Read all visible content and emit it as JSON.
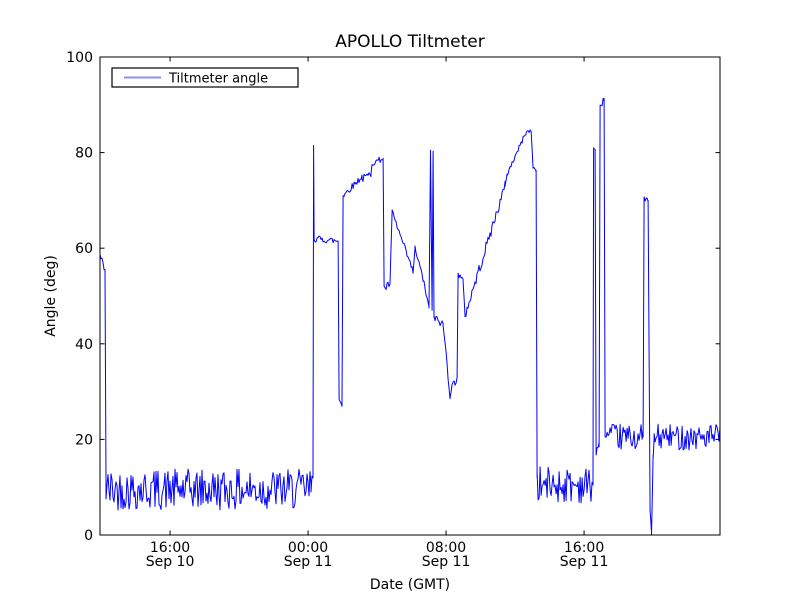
{
  "chart_data": {
    "type": "line",
    "title": "APOLLO Tiltmeter",
    "xlabel": "Date (GMT)",
    "ylabel": "Angle (deg)",
    "grid": false,
    "ylim": [
      0,
      100
    ],
    "y_ticks": [
      0,
      20,
      40,
      60,
      80,
      100
    ],
    "xlim_hours_from_sep10_0000_gmt": [
      11.94,
      47.88
    ],
    "x_ticks": [
      {
        "hour": 16,
        "time": "16:00",
        "date": "Sep 10"
      },
      {
        "hour": 24,
        "time": "00:00",
        "date": "Sep 11"
      },
      {
        "hour": 32,
        "time": "08:00",
        "date": "Sep 11"
      },
      {
        "hour": 40,
        "time": "16:00",
        "date": "Sep 11"
      }
    ],
    "legend": {
      "position": "upper left",
      "entries": [
        {
          "label": "Tiltmeter angle",
          "color": "#0000ff"
        }
      ]
    },
    "series": [
      {
        "name": "Tiltmeter angle",
        "color": "#0000ff",
        "segment_encoding": "[startHour, endHour, startAngleDeg, endAngleDeg, noiseAmplitudeDeg] — hours counted from Sep 10 00:00 GMT; noisy segments are dense random zigzag bands",
        "segments": [
          [
            11.94,
            12.23,
            58.5,
            55.5,
            0.9
          ],
          [
            12.23,
            12.29,
            55.5,
            11.0,
            0
          ],
          [
            12.29,
            24.17,
            9.5,
            9.5,
            4.3
          ],
          [
            24.17,
            24.29,
            9.5,
            13.0,
            1.5
          ],
          [
            24.29,
            24.32,
            13.0,
            81.5,
            0
          ],
          [
            24.32,
            24.35,
            81.5,
            62.0,
            0
          ],
          [
            24.35,
            25.74,
            62.0,
            61.5,
            0.7
          ],
          [
            25.74,
            25.8,
            61.5,
            28.5,
            0
          ],
          [
            25.8,
            25.97,
            28.5,
            27.5,
            0.8
          ],
          [
            25.97,
            26.03,
            27.5,
            71.0,
            0
          ],
          [
            26.03,
            27.13,
            71.0,
            75.0,
            0.7
          ],
          [
            27.13,
            27.65,
            74.5,
            75.5,
            0.8
          ],
          [
            27.65,
            27.71,
            75.5,
            77.5,
            0
          ],
          [
            27.71,
            28.35,
            77.8,
            78.8,
            0.6
          ],
          [
            28.35,
            28.41,
            78.8,
            52.0,
            0
          ],
          [
            28.41,
            28.75,
            51.5,
            52.5,
            0.8
          ],
          [
            28.75,
            28.87,
            52.5,
            67.5,
            0
          ],
          [
            28.87,
            30.09,
            67.5,
            55.0,
            0.7
          ],
          [
            30.09,
            30.2,
            55.0,
            60.0,
            0
          ],
          [
            30.2,
            30.67,
            60.0,
            53.5,
            0.6
          ],
          [
            30.67,
            31.01,
            53.5,
            47.5,
            0.6
          ],
          [
            31.01,
            31.1,
            47.5,
            80.5,
            0
          ],
          [
            31.1,
            31.19,
            80.5,
            47.0,
            0
          ],
          [
            31.19,
            31.25,
            47.0,
            80.3,
            0
          ],
          [
            31.25,
            31.3,
            80.3,
            45.5,
            0
          ],
          [
            31.3,
            31.83,
            45.5,
            44.0,
            0.8
          ],
          [
            31.83,
            32.23,
            44.0,
            29.5,
            1.2
          ],
          [
            32.23,
            32.64,
            29.5,
            33.5,
            1.2
          ],
          [
            32.64,
            32.7,
            33.5,
            54.5,
            0
          ],
          [
            32.7,
            32.99,
            54.5,
            53.0,
            0.7
          ],
          [
            32.99,
            33.1,
            53.0,
            46.0,
            0
          ],
          [
            33.1,
            35.42,
            46.0,
            73.0,
            1.1
          ],
          [
            35.42,
            35.54,
            73.0,
            75.5,
            0
          ],
          [
            35.54,
            36.64,
            75.5,
            84.3,
            0.5
          ],
          [
            36.64,
            36.93,
            84.3,
            84.5,
            0.4
          ],
          [
            36.93,
            37.04,
            84.5,
            77.0,
            0
          ],
          [
            37.04,
            37.22,
            77.0,
            76.3,
            0.4
          ],
          [
            37.22,
            37.28,
            76.3,
            12.0,
            0
          ],
          [
            37.28,
            40.52,
            10.5,
            10.5,
            3.8
          ],
          [
            40.52,
            40.55,
            10.5,
            81.0,
            0
          ],
          [
            40.55,
            40.64,
            81.0,
            80.5,
            0.3
          ],
          [
            40.64,
            40.7,
            80.5,
            17.5,
            0
          ],
          [
            40.7,
            40.87,
            17.5,
            18.5,
            1.0
          ],
          [
            40.87,
            40.93,
            18.5,
            89.5,
            0
          ],
          [
            40.93,
            41.16,
            89.5,
            91.3,
            0.6
          ],
          [
            41.16,
            41.22,
            91.3,
            21.0,
            0
          ],
          [
            41.22,
            43.42,
            20.5,
            20.5,
            2.7
          ],
          [
            43.42,
            43.48,
            20.5,
            70.5,
            0
          ],
          [
            43.48,
            43.71,
            70.5,
            70.0,
            0.5
          ],
          [
            43.71,
            43.83,
            70.0,
            5.0,
            0
          ],
          [
            43.83,
            43.91,
            5.0,
            0.2,
            0.5
          ],
          [
            43.91,
            44.0,
            0.2,
            16.0,
            1.0
          ],
          [
            44.0,
            44.06,
            16.0,
            20.0,
            0
          ],
          [
            44.06,
            47.88,
            20.5,
            20.5,
            2.7
          ]
        ]
      }
    ]
  }
}
